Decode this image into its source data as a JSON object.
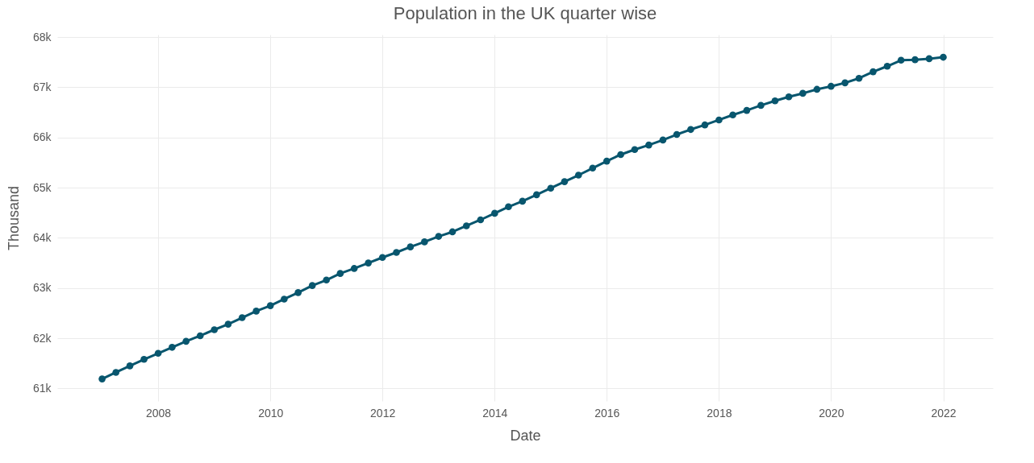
{
  "chart_data": {
    "type": "line",
    "title": "Population in the UK quarter wise",
    "xlabel": "Date",
    "ylabel": "Thousand",
    "x": [
      "2007-01",
      "2007-04",
      "2007-07",
      "2007-10",
      "2008-01",
      "2008-04",
      "2008-07",
      "2008-10",
      "2009-01",
      "2009-04",
      "2009-07",
      "2009-10",
      "2010-01",
      "2010-04",
      "2010-07",
      "2010-10",
      "2011-01",
      "2011-04",
      "2011-07",
      "2011-10",
      "2012-01",
      "2012-04",
      "2012-07",
      "2012-10",
      "2013-01",
      "2013-04",
      "2013-07",
      "2013-10",
      "2014-01",
      "2014-04",
      "2014-07",
      "2014-10",
      "2015-01",
      "2015-04",
      "2015-07",
      "2015-10",
      "2016-01",
      "2016-04",
      "2016-07",
      "2016-10",
      "2017-01",
      "2017-04",
      "2017-07",
      "2017-10",
      "2018-01",
      "2018-04",
      "2018-07",
      "2018-10",
      "2019-01",
      "2019-04",
      "2019-07",
      "2019-10",
      "2020-01",
      "2020-04",
      "2020-07",
      "2020-10",
      "2021-01",
      "2021-04",
      "2021-07",
      "2021-10",
      "2022-01"
    ],
    "series": [
      {
        "color": "#08566e",
        "values": [
          61190,
          61320,
          61450,
          61580,
          61700,
          61820,
          61940,
          62050,
          62170,
          62280,
          62410,
          62540,
          62650,
          62780,
          62910,
          63050,
          63160,
          63290,
          63390,
          63500,
          63610,
          63710,
          63820,
          63920,
          64030,
          64120,
          64240,
          64360,
          64490,
          64620,
          64730,
          64860,
          64990,
          65120,
          65250,
          65390,
          65530,
          65660,
          65760,
          65850,
          65950,
          66060,
          66160,
          66250,
          66350,
          66450,
          66540,
          66640,
          66730,
          66810,
          66880,
          66960,
          67020,
          67090,
          67180,
          67310,
          67420,
          67540,
          67550,
          67570,
          67600
        ]
      }
    ],
    "xlim": [
      "2006-03-15",
      "2022-11-20"
    ],
    "xticks": [
      {
        "value": "2008",
        "label": "2008"
      },
      {
        "value": "2010",
        "label": "2010"
      },
      {
        "value": "2012",
        "label": "2012"
      },
      {
        "value": "2014",
        "label": "2014"
      },
      {
        "value": "2016",
        "label": "2016"
      },
      {
        "value": "2018",
        "label": "2018"
      },
      {
        "value": "2020",
        "label": "2020"
      },
      {
        "value": "2022",
        "label": "2022"
      }
    ],
    "ylim": [
      60750,
      68050
    ],
    "yticks": [
      {
        "value": 61000,
        "label": "61k"
      },
      {
        "value": 62000,
        "label": "62k"
      },
      {
        "value": 63000,
        "label": "63k"
      },
      {
        "value": 64000,
        "label": "64k"
      },
      {
        "value": 65000,
        "label": "65k"
      },
      {
        "value": 66000,
        "label": "66k"
      },
      {
        "value": 67000,
        "label": "67k"
      },
      {
        "value": 68000,
        "label": "68k"
      }
    ],
    "grid": true,
    "marker": "circle",
    "line_style": "solid"
  }
}
